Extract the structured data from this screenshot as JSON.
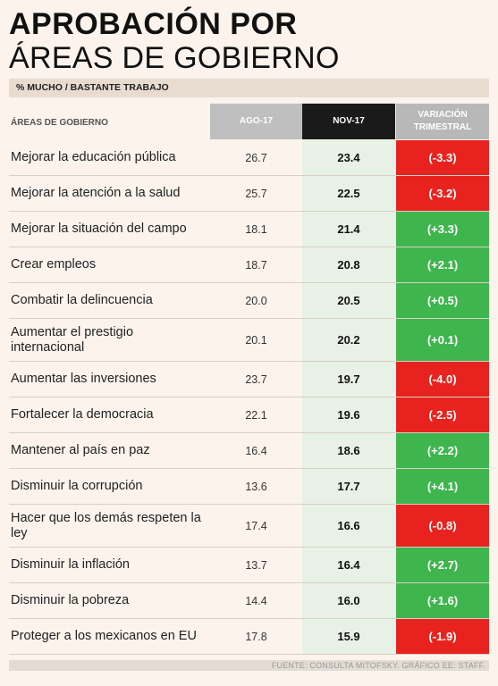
{
  "title_line1": "APROBACIÓN POR",
  "title_line2": "ÁREAS DE GOBIERNO",
  "subtitle": "% MUCHO / BASTANTE TRABAJO",
  "headers": {
    "areas": "ÁREAS DE GOBIERNO",
    "ago": "AGO-17",
    "nov": "NOV-17",
    "var_line1": "VARIACIÓN",
    "var_line2": "TRIMESTRAL"
  },
  "colors": {
    "positive": "#3fb54e",
    "negative": "#e8231f",
    "nov_highlight": "#1a1a1a"
  },
  "chart_data": {
    "type": "table",
    "title": "APROBACIÓN POR ÁREAS DE GOBIERNO",
    "subtitle": "% MUCHO / BASTANTE TRABAJO",
    "columns": [
      "ÁREAS DE GOBIERNO",
      "AGO-17",
      "NOV-17",
      "VARIACIÓN TRIMESTRAL"
    ],
    "rows": [
      {
        "area": "Mejorar la educación pública",
        "ago": "26.7",
        "nov": "23.4",
        "var": "(-3.3)",
        "sign": "neg",
        "tall": false
      },
      {
        "area": "Mejorar la atención a la salud",
        "ago": "25.7",
        "nov": "22.5",
        "var": "(-3.2)",
        "sign": "neg",
        "tall": false
      },
      {
        "area": "Mejorar la situación del campo",
        "ago": "18.1",
        "nov": "21.4",
        "var": "(+3.3)",
        "sign": "pos",
        "tall": false
      },
      {
        "area": "Crear empleos",
        "ago": "18.7",
        "nov": "20.8",
        "var": "(+2.1)",
        "sign": "pos",
        "tall": false
      },
      {
        "area": "Combatir la delincuencia",
        "ago": "20.0",
        "nov": "20.5",
        "var": "(+0.5)",
        "sign": "pos",
        "tall": false
      },
      {
        "area": "Aumentar el prestigio internacional",
        "ago": "20.1",
        "nov": "20.2",
        "var": "(+0.1)",
        "sign": "pos",
        "tall": true
      },
      {
        "area": "Aumentar las inversiones",
        "ago": "23.7",
        "nov": "19.7",
        "var": "(-4.0)",
        "sign": "neg",
        "tall": false
      },
      {
        "area": "Fortalecer la democracia",
        "ago": "22.1",
        "nov": "19.6",
        "var": "(-2.5)",
        "sign": "neg",
        "tall": false
      },
      {
        "area": "Mantener al país en paz",
        "ago": "16.4",
        "nov": "18.6",
        "var": "(+2.2)",
        "sign": "pos",
        "tall": false
      },
      {
        "area": "Disminuir la corrupción",
        "ago": "13.6",
        "nov": "17.7",
        "var": "(+4.1)",
        "sign": "pos",
        "tall": false
      },
      {
        "area": "Hacer que los demás respeten la ley",
        "ago": "17.4",
        "nov": "16.6",
        "var": "(-0.8)",
        "sign": "neg",
        "tall": true
      },
      {
        "area": "Disminuir la inflación",
        "ago": "13.7",
        "nov": "16.4",
        "var": "(+2.7)",
        "sign": "pos",
        "tall": false
      },
      {
        "area": "Disminuir la pobreza",
        "ago": "14.4",
        "nov": "16.0",
        "var": "(+1.6)",
        "sign": "pos",
        "tall": false
      },
      {
        "area": "Proteger a los mexicanos en EU",
        "ago": "17.8",
        "nov": "15.9",
        "var": "(-1.9)",
        "sign": "neg",
        "tall": false
      }
    ]
  },
  "footer": "FUENTE: CONSULTA MITOFSKY. GRÁFICO EE: STAFF."
}
